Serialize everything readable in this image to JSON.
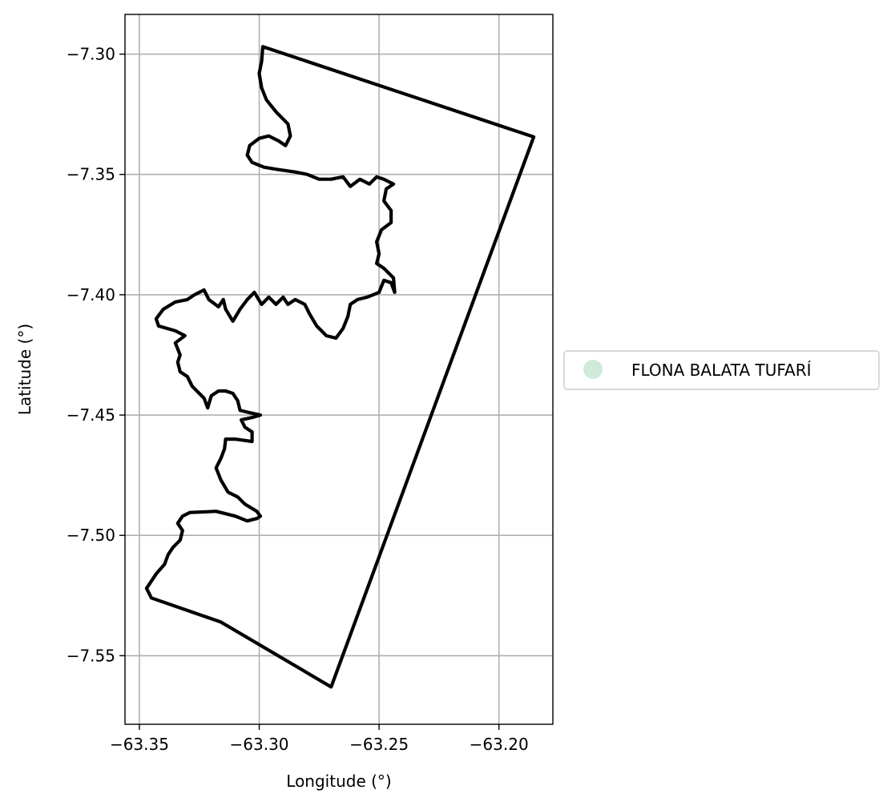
{
  "chart_data": {
    "type": "map",
    "xlabel": "Longitude (°)",
    "ylabel": "Latitude (°)",
    "xlim": [
      -63.356,
      -63.1775
    ],
    "ylim": [
      -7.5785,
      -7.2835
    ],
    "grid": true,
    "x_ticks": [
      {
        "value": -63.35,
        "label": "−63.35"
      },
      {
        "value": -63.3,
        "label": "−63.30"
      },
      {
        "value": -63.25,
        "label": "−63.25"
      },
      {
        "value": -63.2,
        "label": "−63.20"
      }
    ],
    "y_ticks": [
      {
        "value": -7.3,
        "label": "−7.30"
      },
      {
        "value": -7.35,
        "label": "−7.35"
      },
      {
        "value": -7.4,
        "label": "−7.40"
      },
      {
        "value": -7.45,
        "label": "−7.45"
      },
      {
        "value": -7.5,
        "label": "−7.50"
      },
      {
        "value": -7.55,
        "label": "−7.55"
      }
    ],
    "legend": {
      "placement": "center-right-outside",
      "entries": [
        {
          "name": "FLONA BALATA TUFARÍ",
          "color": "#cfeadb"
        }
      ]
    },
    "outline_color": "#000000",
    "boundary_lonlat": [
      [
        -63.2985,
        -7.2969
      ],
      [
        -63.1855,
        -7.3344
      ],
      [
        -63.27,
        -7.563
      ],
      [
        -63.316,
        -7.536
      ],
      [
        -63.345,
        -7.526
      ],
      [
        -63.347,
        -7.522
      ],
      [
        -63.343,
        -7.516
      ],
      [
        -63.3395,
        -7.512
      ],
      [
        -63.338,
        -7.508
      ],
      [
        -63.336,
        -7.505
      ],
      [
        -63.333,
        -7.502
      ],
      [
        -63.332,
        -7.498
      ],
      [
        -63.334,
        -7.495
      ],
      [
        -63.332,
        -7.492
      ],
      [
        -63.329,
        -7.4905
      ],
      [
        -63.318,
        -7.49
      ],
      [
        -63.31,
        -7.492
      ],
      [
        -63.305,
        -7.494
      ],
      [
        -63.301,
        -7.493
      ],
      [
        -63.2995,
        -7.492
      ],
      [
        -63.301,
        -7.49
      ],
      [
        -63.306,
        -7.487
      ],
      [
        -63.309,
        -7.484
      ],
      [
        -63.313,
        -7.482
      ],
      [
        -63.316,
        -7.477
      ],
      [
        -63.318,
        -7.472
      ],
      [
        -63.316,
        -7.468
      ],
      [
        -63.3145,
        -7.464
      ],
      [
        -63.314,
        -7.46
      ],
      [
        -63.31,
        -7.46
      ],
      [
        -63.303,
        -7.461
      ],
      [
        -63.303,
        -7.457
      ],
      [
        -63.306,
        -7.455
      ],
      [
        -63.3075,
        -7.452
      ],
      [
        -63.303,
        -7.451
      ],
      [
        -63.2995,
        -7.45
      ],
      [
        -63.304,
        -7.449
      ],
      [
        -63.308,
        -7.448
      ],
      [
        -63.309,
        -7.444
      ],
      [
        -63.311,
        -7.441
      ],
      [
        -63.314,
        -7.44
      ],
      [
        -63.317,
        -7.44
      ],
      [
        -63.32,
        -7.442
      ],
      [
        -63.3215,
        -7.447
      ],
      [
        -63.323,
        -7.443
      ],
      [
        -63.325,
        -7.441
      ],
      [
        -63.328,
        -7.438
      ],
      [
        -63.33,
        -7.434
      ],
      [
        -63.333,
        -7.432
      ],
      [
        -63.334,
        -7.428
      ],
      [
        -63.333,
        -7.425
      ],
      [
        -63.335,
        -7.42
      ],
      [
        -63.331,
        -7.417
      ],
      [
        -63.335,
        -7.415
      ],
      [
        -63.342,
        -7.413
      ],
      [
        -63.343,
        -7.41
      ],
      [
        -63.34,
        -7.406
      ],
      [
        -63.335,
        -7.403
      ],
      [
        -63.33,
        -7.402
      ],
      [
        -63.327,
        -7.4
      ],
      [
        -63.323,
        -7.398
      ],
      [
        -63.321,
        -7.402
      ],
      [
        -63.317,
        -7.405
      ],
      [
        -63.315,
        -7.402
      ],
      [
        -63.314,
        -7.406
      ],
      [
        -63.311,
        -7.411
      ],
      [
        -63.308,
        -7.406
      ],
      [
        -63.305,
        -7.402
      ],
      [
        -63.302,
        -7.399
      ],
      [
        -63.299,
        -7.404
      ],
      [
        -63.296,
        -7.401
      ],
      [
        -63.293,
        -7.404
      ],
      [
        -63.29,
        -7.401
      ],
      [
        -63.288,
        -7.404
      ],
      [
        -63.285,
        -7.402
      ],
      [
        -63.281,
        -7.404
      ],
      [
        -63.279,
        -7.408
      ],
      [
        -63.276,
        -7.413
      ],
      [
        -63.272,
        -7.417
      ],
      [
        -63.268,
        -7.418
      ],
      [
        -63.265,
        -7.414
      ],
      [
        -63.263,
        -7.409
      ],
      [
        -63.262,
        -7.404
      ],
      [
        -63.259,
        -7.402
      ],
      [
        -63.255,
        -7.401
      ],
      [
        -63.25,
        -7.399
      ],
      [
        -63.248,
        -7.394
      ],
      [
        -63.245,
        -7.395
      ],
      [
        -63.2435,
        -7.399
      ],
      [
        -63.244,
        -7.393
      ],
      [
        -63.248,
        -7.389
      ],
      [
        -63.251,
        -7.387
      ],
      [
        -63.25,
        -7.383
      ],
      [
        -63.251,
        -7.378
      ],
      [
        -63.249,
        -7.373
      ],
      [
        -63.245,
        -7.37
      ],
      [
        -63.245,
        -7.365
      ],
      [
        -63.248,
        -7.361
      ],
      [
        -63.247,
        -7.356
      ],
      [
        -63.244,
        -7.354
      ],
      [
        -63.248,
        -7.352
      ],
      [
        -63.251,
        -7.351
      ],
      [
        -63.254,
        -7.354
      ],
      [
        -63.258,
        -7.352
      ],
      [
        -63.262,
        -7.355
      ],
      [
        -63.265,
        -7.351
      ],
      [
        -63.27,
        -7.352
      ],
      [
        -63.275,
        -7.352
      ],
      [
        -63.28,
        -7.35
      ],
      [
        -63.285,
        -7.349
      ],
      [
        -63.292,
        -7.348
      ],
      [
        -63.298,
        -7.347
      ],
      [
        -63.303,
        -7.345
      ],
      [
        -63.305,
        -7.342
      ],
      [
        -63.304,
        -7.338
      ],
      [
        -63.3,
        -7.335
      ],
      [
        -63.296,
        -7.334
      ],
      [
        -63.292,
        -7.336
      ],
      [
        -63.289,
        -7.338
      ],
      [
        -63.287,
        -7.334
      ],
      [
        -63.288,
        -7.329
      ],
      [
        -63.293,
        -7.324
      ],
      [
        -63.297,
        -7.319
      ],
      [
        -63.299,
        -7.314
      ],
      [
        -63.3,
        -7.308
      ],
      [
        -63.299,
        -7.303
      ],
      [
        -63.2985,
        -7.2969
      ]
    ]
  }
}
